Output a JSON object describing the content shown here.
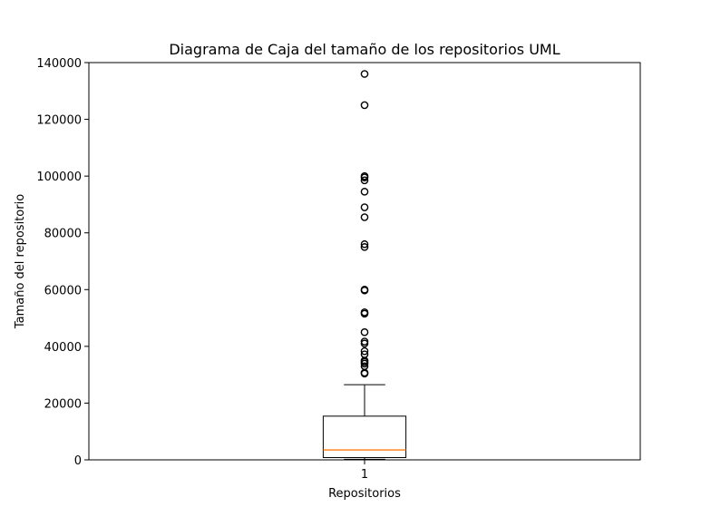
{
  "chart_data": {
    "type": "box",
    "title": "Diagrama de Caja del tamaño de los repositorios  UML",
    "xlabel": "Repositorios",
    "ylabel": "Tamaño del repositorio",
    "ylim": [
      0,
      140000
    ],
    "yticks": [
      0,
      20000,
      40000,
      60000,
      80000,
      100000,
      120000,
      140000
    ],
    "categories": [
      "1"
    ],
    "boxes": [
      {
        "category": "1",
        "whisker_low": 200,
        "q1": 800,
        "median": 3500,
        "q3": 15400,
        "whisker_high": 26500,
        "outliers": [
          30400,
          30700,
          33000,
          33900,
          34500,
          35000,
          37200,
          38300,
          41000,
          41700,
          45000,
          51500,
          52000,
          59700,
          60000,
          75000,
          76000,
          85500,
          89000,
          94500,
          98500,
          99500,
          100000,
          125000,
          136000
        ]
      }
    ],
    "colors": {
      "box": "#000000",
      "median": "#ff7f0e",
      "outlier": "#000000"
    },
    "grid": false
  }
}
